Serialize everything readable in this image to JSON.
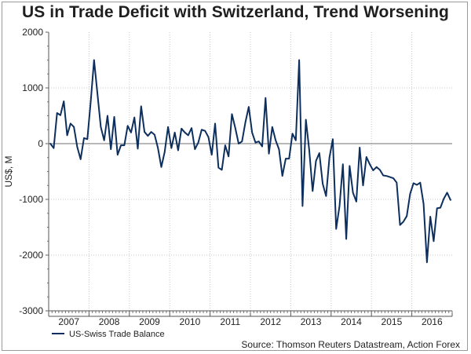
{
  "chart_data": {
    "type": "line",
    "title": "US in Trade Deficit with Switzerland, Trend Worsening",
    "ylabel": "US$, M",
    "xlabel": "",
    "ylim": [
      -3000,
      2000
    ],
    "yticks": [
      2000,
      1000,
      0,
      -1000,
      -2000,
      -3000
    ],
    "ytick_labels": [
      "2000",
      "1000",
      "0",
      "-1000",
      "-2000",
      "-3000"
    ],
    "x_start_year": 2007,
    "x_start_month": 1,
    "xlim_years": [
      2007.0,
      2017.0
    ],
    "year_labels": [
      "2007",
      "2008",
      "2009",
      "2010",
      "2011",
      "2012",
      "2013",
      "2014",
      "2015",
      "2016"
    ],
    "grid": true,
    "legend_position": "bottom-left",
    "series": [
      {
        "name": "US-Swiss Trade Balance",
        "color": "#0d2f5e",
        "values": [
          0,
          -80,
          550,
          510,
          760,
          150,
          360,
          300,
          -60,
          -280,
          100,
          80,
          750,
          1500,
          900,
          300,
          60,
          500,
          -100,
          480,
          -200,
          -30,
          -30,
          320,
          200,
          470,
          -90,
          670,
          210,
          140,
          210,
          160,
          -80,
          -420,
          -150,
          300,
          -80,
          200,
          -120,
          270,
          200,
          150,
          280,
          -100,
          20,
          250,
          230,
          120,
          -200,
          360,
          -430,
          -470,
          -30,
          -230,
          530,
          280,
          0,
          40,
          380,
          660,
          200,
          20,
          40,
          -50,
          820,
          -180,
          300,
          60,
          -100,
          -580,
          -270,
          -270,
          180,
          60,
          1500,
          -1120,
          430,
          -120,
          -850,
          -310,
          -170,
          -720,
          -940,
          -250,
          80,
          -1530,
          -1120,
          -370,
          -1710,
          -400,
          -880,
          -1040,
          -70,
          -750,
          -240,
          -370,
          -480,
          -420,
          -470,
          -570,
          -580,
          -600,
          -620,
          -700,
          -1460,
          -1400,
          -1300,
          -900,
          -710,
          -740,
          -700,
          -1080,
          -2130,
          -1310,
          -1750,
          -1160,
          -1150,
          -990,
          -880,
          -1010
        ]
      }
    ],
    "source": "Source: Thomson Reuters Datastream, Action Forex"
  }
}
